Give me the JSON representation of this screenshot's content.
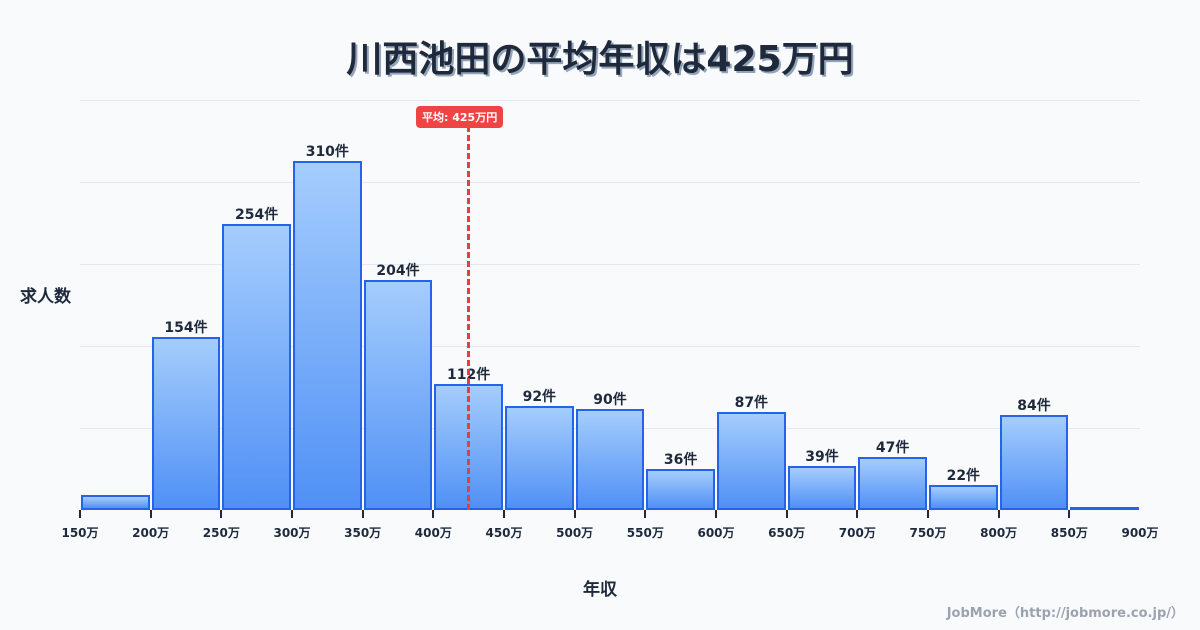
{
  "title": "川西池田の平均年収は425万円",
  "average_badge": "平均: 425万円",
  "y_axis_label": "求人数",
  "x_axis_label": "年収",
  "credit": "JobMore（http://jobmore.co.jp/）",
  "colors": {
    "bar_border": "#2563eb",
    "bar_top": "#a5cdfd",
    "bar_bottom": "#5090f5",
    "average_line": "#e53e3e",
    "badge": "#ef4444",
    "grid": "#e2e8f0",
    "background": "#f8fafc"
  },
  "chart_data": {
    "type": "bar",
    "title": "川西池田の平均年収は425万円",
    "xlabel": "年収",
    "ylabel": "求人数",
    "categories": [
      "150-200万",
      "200-250万",
      "250-300万",
      "300-350万",
      "350-400万",
      "400-450万",
      "450-500万",
      "500-550万",
      "550-600万",
      "600-650万",
      "650-700万",
      "700-750万",
      "750-800万",
      "800-850万",
      "850-900万"
    ],
    "values": [
      13,
      154,
      254,
      310,
      204,
      112,
      92,
      90,
      36,
      87,
      39,
      47,
      22,
      84,
      1
    ],
    "value_labels": [
      "",
      "154件",
      "254件",
      "310件",
      "204件",
      "112件",
      "92件",
      "90件",
      "36件",
      "87件",
      "39件",
      "47件",
      "22件",
      "84件",
      ""
    ],
    "tick_labels": [
      "150万",
      "200万",
      "250万",
      "300万",
      "350万",
      "400万",
      "450万",
      "500万",
      "550万",
      "600万",
      "650万",
      "700万",
      "750万",
      "800万",
      "850万",
      "900万"
    ],
    "average": 425,
    "average_label": "平均: 425万円",
    "grid": true,
    "legend": false
  }
}
